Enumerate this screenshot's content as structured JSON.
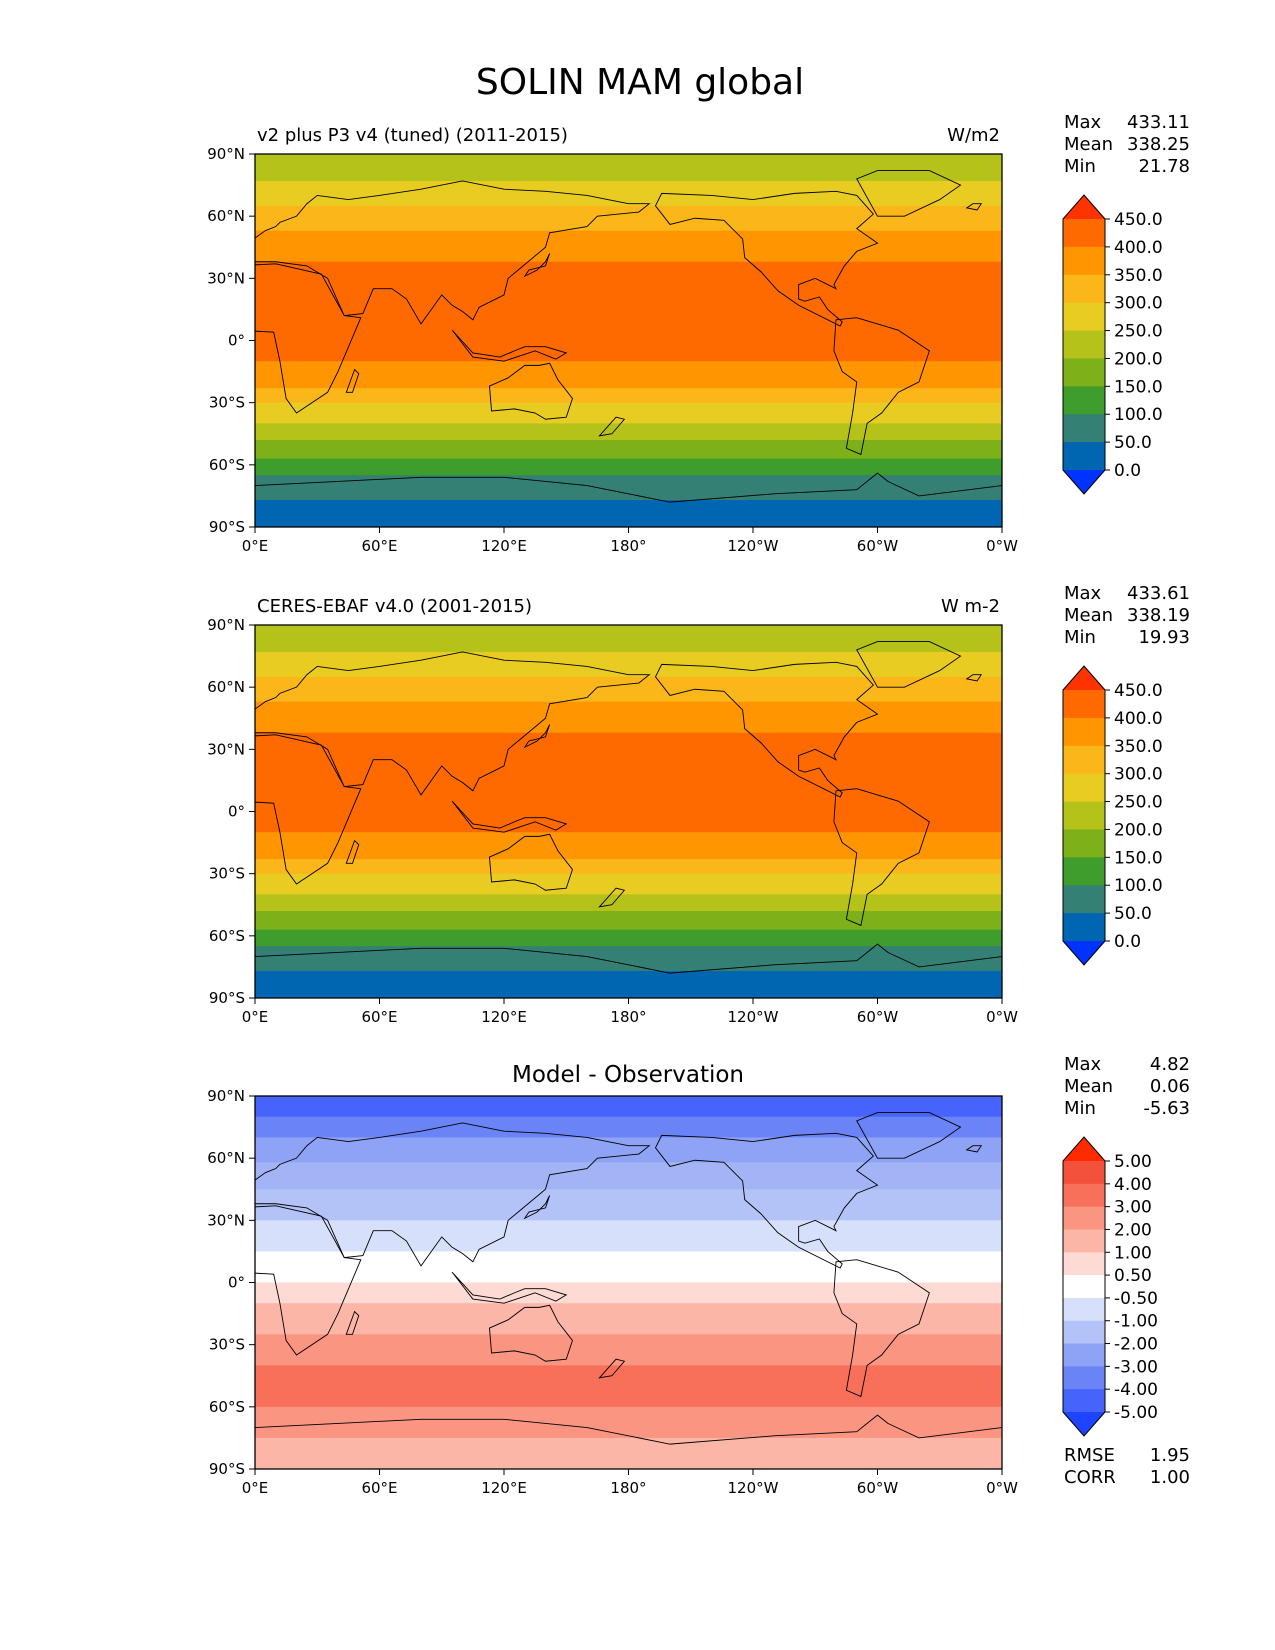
{
  "figure": {
    "title": "SOLIN MAM global"
  },
  "panels": [
    {
      "id": "model",
      "title_left": "v2 plus P3 v4 (tuned) (2011-2015)",
      "title_right": "W/m2",
      "title_center": "",
      "stats": [
        {
          "label": "Max",
          "value": "433.11"
        },
        {
          "label": "Mean",
          "value": "338.25"
        },
        {
          "label": "Min",
          "value": "21.78"
        }
      ],
      "colorbar": {
        "labels": [
          "450.0",
          "400.0",
          "350.0",
          "300.0",
          "250.0",
          "200.0",
          "150.0",
          "100.0",
          "50.0",
          "0.0"
        ],
        "colors": [
          "#ff3300",
          "#ff6a00",
          "#ff9500",
          "#fbb71a",
          "#e9cc22",
          "#b4c21a",
          "#7db019",
          "#3f9e2b",
          "#348074",
          "#0066b2",
          "#0033ff"
        ]
      }
    },
    {
      "id": "obs",
      "title_left": "CERES-EBAF v4.0 (2001-2015)",
      "title_right": "W m-2",
      "title_center": "",
      "stats": [
        {
          "label": "Max",
          "value": "433.61"
        },
        {
          "label": "Mean",
          "value": "338.19"
        },
        {
          "label": "Min",
          "value": "19.93"
        }
      ],
      "colorbar": {
        "labels": [
          "450.0",
          "400.0",
          "350.0",
          "300.0",
          "250.0",
          "200.0",
          "150.0",
          "100.0",
          "50.0",
          "0.0"
        ],
        "colors": [
          "#ff3300",
          "#ff6a00",
          "#ff9500",
          "#fbb71a",
          "#e9cc22",
          "#b4c21a",
          "#7db019",
          "#3f9e2b",
          "#348074",
          "#0066b2",
          "#0033ff"
        ]
      }
    },
    {
      "id": "diff",
      "title_left": "",
      "title_right": "",
      "title_center": "Model - Observation",
      "stats": [
        {
          "label": "Max",
          "value": "4.82"
        },
        {
          "label": "Mean",
          "value": "0.06"
        },
        {
          "label": "Min",
          "value": "-5.63"
        }
      ],
      "extra_stats": [
        {
          "label": "RMSE",
          "value": "1.95"
        },
        {
          "label": "CORR",
          "value": "1.00"
        }
      ],
      "colorbar": {
        "labels": [
          "5.00",
          "4.00",
          "3.00",
          "2.00",
          "1.00",
          "0.50",
          "-0.50",
          "-1.00",
          "-2.00",
          "-3.00",
          "-4.00",
          "-5.00"
        ],
        "colors": [
          "#ff2a00",
          "#f4513c",
          "#f8705a",
          "#fa9582",
          "#fcb6a8",
          "#fddad3",
          "#ffffff",
          "#d7e0fb",
          "#b3c2f7",
          "#8ea3f5",
          "#6a84f7",
          "#4664fb",
          "#1f44ff"
        ]
      }
    }
  ],
  "axes": {
    "lat_labels": [
      "90°N",
      "60°N",
      "30°N",
      "0°",
      "30°S",
      "60°S",
      "90°S"
    ],
    "lon_labels": [
      "0°E",
      "60°E",
      "120°E",
      "180°",
      "120°W",
      "60°W",
      "0°W"
    ]
  },
  "field_bands": {
    "solin_lat_edges": [
      90,
      77,
      65,
      53,
      38,
      -10,
      -23,
      -30,
      -40,
      -48,
      -57,
      -65,
      -77,
      -90
    ],
    "solin_colors": [
      "#b4c21a",
      "#e9cc22",
      "#fbb71a",
      "#ff9500",
      "#ff6a00",
      "#ff9500",
      "#fbb71a",
      "#e9cc22",
      "#b4c21a",
      "#7db019",
      "#3f9e2b",
      "#348074",
      "#0066b2"
    ],
    "diff_lat_edges": [
      90,
      80,
      70,
      58,
      45,
      30,
      15,
      0,
      -10,
      -25,
      -40,
      -60,
      -75,
      -90
    ],
    "diff_colors": [
      "#4664fb",
      "#6a84f7",
      "#8ea3f5",
      "#a2b4f5",
      "#b3c2f7",
      "#d7e0fb",
      "#ffffff",
      "#fddad3",
      "#fcb6a8",
      "#fa9582",
      "#f8705a",
      "#fa9582",
      "#fcb6a8"
    ]
  }
}
